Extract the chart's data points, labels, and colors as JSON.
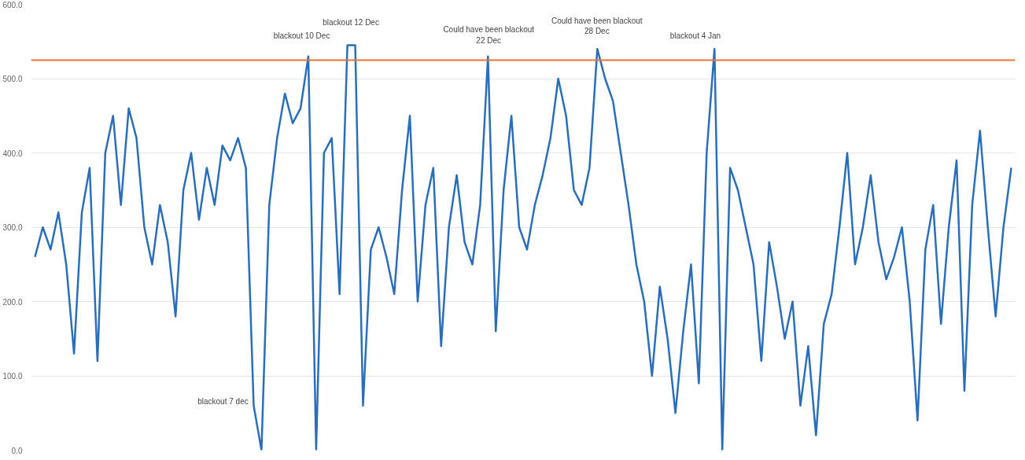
{
  "chart_data": {
    "type": "line",
    "categories": [
      null,
      null,
      null,
      null,
      null,
      null,
      null,
      null,
      null,
      null,
      null,
      null,
      null,
      null,
      null,
      null,
      null,
      null,
      null,
      null,
      null,
      null,
      null,
      null,
      null,
      null,
      null,
      null,
      null,
      null,
      null,
      null,
      null,
      null,
      null,
      null,
      null,
      null,
      null,
      null,
      null,
      null,
      null,
      null,
      null,
      null,
      null,
      null,
      null,
      null,
      null,
      null,
      null,
      null,
      null,
      null,
      null,
      null,
      null,
      null,
      null,
      null,
      null,
      null,
      null,
      null,
      null,
      null,
      null,
      null,
      null,
      null,
      null,
      null,
      null,
      null,
      null,
      null,
      null,
      null,
      null,
      null,
      null,
      null,
      null,
      null,
      null,
      null,
      null,
      null,
      null,
      null,
      null,
      null,
      null,
      null,
      null,
      null,
      null,
      null,
      null,
      null,
      null,
      null,
      null,
      null,
      null,
      null,
      null,
      null,
      null,
      null,
      null,
      null,
      null,
      null,
      null,
      null,
      null,
      null,
      null,
      null,
      null,
      null,
      null,
      null
    ],
    "series": [
      {
        "color": "#2a6ebb",
        "values": [
          260,
          300,
          270,
          320,
          250,
          130,
          320,
          380,
          120,
          400,
          450,
          330,
          460,
          420,
          300,
          250,
          330,
          280,
          180,
          350,
          400,
          310,
          380,
          330,
          410,
          390,
          420,
          380,
          60,
          0,
          330,
          420,
          480,
          440,
          460,
          530,
          0,
          400,
          420,
          210,
          545,
          545,
          60,
          270,
          300,
          260,
          210,
          350,
          450,
          200,
          330,
          380,
          140,
          300,
          370,
          280,
          250,
          330,
          530,
          160,
          350,
          450,
          300,
          270,
          330,
          370,
          420,
          500,
          450,
          350,
          330,
          380,
          540,
          500,
          470,
          400,
          330,
          250,
          200,
          100,
          220,
          150,
          50,
          160,
          250,
          90,
          400,
          540,
          0,
          380,
          350,
          300,
          250,
          120,
          280,
          220,
          150,
          200,
          60,
          140,
          20,
          170,
          210,
          300,
          400,
          250,
          300,
          370,
          280,
          230,
          260,
          300,
          200,
          40,
          270,
          330,
          170,
          300,
          390,
          80,
          330,
          430,
          300,
          180,
          300,
          380
        ]
      }
    ],
    "ylim": [
      0,
      600
    ],
    "yticks": [
      {
        "value": 0,
        "label": "0.0"
      },
      {
        "value": 100,
        "label": "100.0"
      },
      {
        "value": 200,
        "label": "200.0"
      },
      {
        "value": 300,
        "label": "300.0"
      },
      {
        "value": 400,
        "label": "400.0"
      },
      {
        "value": 500,
        "label": "500.0"
      },
      {
        "value": 600,
        "label": "600.0"
      }
    ],
    "ref_lines": [
      {
        "axis": "y",
        "value": 525,
        "color": "#e8743b"
      }
    ],
    "annotations": [
      "blackout 7 dec",
      "blackout 10 Dec",
      "blackout 12 Dec",
      "Could have been blackout\n22 Dec",
      "Could have been blackout\n28 Dec",
      "blackout 4 Jan"
    ],
    "grid": "y",
    "tick_labels": "y",
    "marker": "none",
    "line_style": "solid"
  }
}
